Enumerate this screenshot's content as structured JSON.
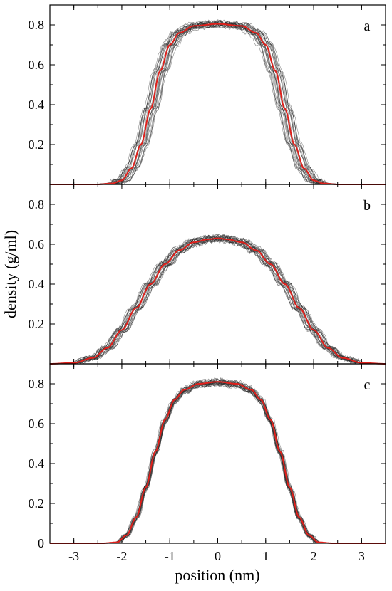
{
  "chart_data": {
    "type": "line",
    "xlabel": "position (nm)",
    "ylabel": "density (g/ml)",
    "xlim": [
      -3.5,
      3.5
    ],
    "x_ticks": [
      "-3",
      "-2",
      "-1",
      "0",
      "1",
      "2",
      "3"
    ],
    "grid": false,
    "colors": {
      "individual": "#2a2a2a",
      "mean": "#e0201b"
    },
    "panels": [
      {
        "label": "a",
        "ylim": [
          0,
          0.9
        ],
        "y_ticks": [
          "0.2",
          "0.4",
          "0.6",
          "0.8"
        ],
        "series": [
          {
            "x": [
              -3.5,
              -3.0,
              -2.5,
              -2.2,
              -2.0,
              -1.8,
              -1.6,
              -1.4,
              -1.2,
              -1.0,
              -0.8,
              -0.5,
              0.0,
              0.5,
              0.8,
              1.0,
              1.2,
              1.4,
              1.6,
              1.8,
              2.0,
              2.2,
              2.5,
              3.0,
              3.5
            ],
            "y": [
              0.0,
              0.0,
              0.0,
              0.005,
              0.02,
              0.08,
              0.2,
              0.38,
              0.57,
              0.7,
              0.76,
              0.795,
              0.805,
              0.795,
              0.76,
              0.7,
              0.57,
              0.38,
              0.2,
              0.08,
              0.02,
              0.005,
              0.0,
              0.0,
              0.0
            ]
          }
        ]
      },
      {
        "label": "b",
        "ylim": [
          0,
          0.9
        ],
        "y_ticks": [
          "0.2",
          "0.4",
          "0.6",
          "0.8"
        ],
        "series": [
          {
            "x": [
              -3.5,
              -3.0,
              -2.6,
              -2.3,
              -2.0,
              -1.7,
              -1.4,
              -1.1,
              -0.8,
              -0.5,
              -0.2,
              0.0,
              0.2,
              0.5,
              0.8,
              1.1,
              1.4,
              1.7,
              2.0,
              2.3,
              2.6,
              3.0,
              3.5
            ],
            "y": [
              0.0,
              0.005,
              0.03,
              0.08,
              0.17,
              0.28,
              0.4,
              0.5,
              0.57,
              0.61,
              0.625,
              0.63,
              0.625,
              0.61,
              0.57,
              0.5,
              0.4,
              0.28,
              0.17,
              0.08,
              0.03,
              0.005,
              0.0
            ]
          }
        ]
      },
      {
        "label": "c",
        "ylim": [
          0,
          0.9
        ],
        "y_ticks": [
          "0",
          "0.2",
          "0.4",
          "0.6",
          "0.8"
        ],
        "series": [
          {
            "x": [
              -3.5,
              -3.0,
              -2.4,
              -2.1,
              -1.9,
              -1.7,
              -1.5,
              -1.3,
              -1.1,
              -0.9,
              -0.7,
              -0.4,
              0.0,
              0.4,
              0.7,
              0.9,
              1.1,
              1.3,
              1.5,
              1.7,
              1.9,
              2.1,
              2.4,
              3.0,
              3.5
            ],
            "y": [
              0.0,
              0.0,
              0.0,
              0.005,
              0.04,
              0.13,
              0.28,
              0.46,
              0.62,
              0.72,
              0.77,
              0.8,
              0.81,
              0.8,
              0.77,
              0.72,
              0.62,
              0.46,
              0.28,
              0.13,
              0.04,
              0.005,
              0.0,
              0.0,
              0.0
            ]
          }
        ]
      }
    ]
  }
}
